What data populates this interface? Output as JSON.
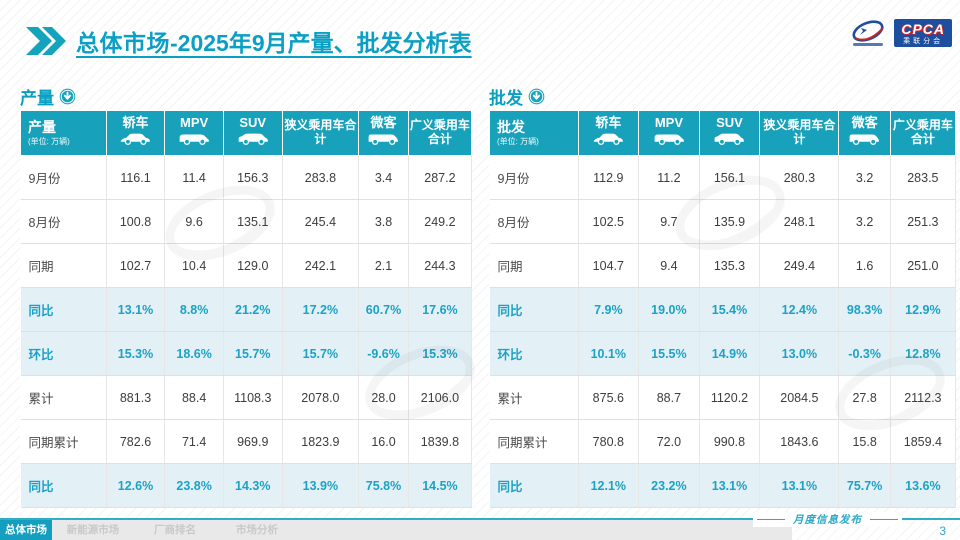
{
  "header": {
    "title_bold": "总体市场",
    "title_rest": "-2025年9月产量、批发分析表",
    "logo_text": "CPCA",
    "logo_subtext": "乘联分会"
  },
  "tables": [
    {
      "section_label": "产量",
      "header_label": "产量",
      "unit": "(单位: 万辆)",
      "columns": [
        "轿车",
        "MPV",
        "SUV",
        "狭义乘用车合计",
        "微客",
        "广义乘用车合计"
      ],
      "rows": [
        {
          "label": "9月份",
          "highlight": false,
          "values": [
            "116.1",
            "11.4",
            "156.3",
            "283.8",
            "3.4",
            "287.2"
          ]
        },
        {
          "label": "8月份",
          "highlight": false,
          "values": [
            "100.8",
            "9.6",
            "135.1",
            "245.4",
            "3.8",
            "249.2"
          ]
        },
        {
          "label": "同期",
          "highlight": false,
          "values": [
            "102.7",
            "10.4",
            "129.0",
            "242.1",
            "2.1",
            "244.3"
          ]
        },
        {
          "label": "同比",
          "highlight": true,
          "values": [
            "13.1%",
            "8.8%",
            "21.2%",
            "17.2%",
            "60.7%",
            "17.6%"
          ]
        },
        {
          "label": "环比",
          "highlight": true,
          "values": [
            "15.3%",
            "18.6%",
            "15.7%",
            "15.7%",
            "-9.6%",
            "15.3%"
          ]
        },
        {
          "label": "累计",
          "highlight": false,
          "values": [
            "881.3",
            "88.4",
            "1108.3",
            "2078.0",
            "28.0",
            "2106.0"
          ]
        },
        {
          "label": "同期累计",
          "highlight": false,
          "values": [
            "782.6",
            "71.4",
            "969.9",
            "1823.9",
            "16.0",
            "1839.8"
          ]
        },
        {
          "label": "同比",
          "highlight": true,
          "values": [
            "12.6%",
            "23.8%",
            "14.3%",
            "13.9%",
            "75.8%",
            "14.5%"
          ]
        }
      ]
    },
    {
      "section_label": "批发",
      "header_label": "批发",
      "unit": "(单位: 万辆)",
      "columns": [
        "轿车",
        "MPV",
        "SUV",
        "狭义乘用车合计",
        "微客",
        "广义乘用车合计"
      ],
      "rows": [
        {
          "label": "9月份",
          "highlight": false,
          "values": [
            "112.9",
            "11.2",
            "156.1",
            "280.3",
            "3.2",
            "283.5"
          ]
        },
        {
          "label": "8月份",
          "highlight": false,
          "values": [
            "102.5",
            "9.7",
            "135.9",
            "248.1",
            "3.2",
            "251.3"
          ]
        },
        {
          "label": "同期",
          "highlight": false,
          "values": [
            "104.7",
            "9.4",
            "135.3",
            "249.4",
            "1.6",
            "251.0"
          ]
        },
        {
          "label": "同比",
          "highlight": true,
          "values": [
            "7.9%",
            "19.0%",
            "15.4%",
            "12.4%",
            "98.3%",
            "12.9%"
          ]
        },
        {
          "label": "环比",
          "highlight": true,
          "values": [
            "10.1%",
            "15.5%",
            "14.9%",
            "13.0%",
            "-0.3%",
            "12.8%"
          ]
        },
        {
          "label": "累计",
          "highlight": false,
          "values": [
            "875.6",
            "88.7",
            "1120.2",
            "2084.5",
            "27.8",
            "2112.3"
          ]
        },
        {
          "label": "同期累计",
          "highlight": false,
          "values": [
            "780.8",
            "72.0",
            "990.8",
            "1843.6",
            "15.8",
            "1859.4"
          ]
        },
        {
          "label": "同比",
          "highlight": true,
          "values": [
            "12.1%",
            "23.2%",
            "13.1%",
            "13.1%",
            "75.7%",
            "13.6%"
          ]
        }
      ]
    }
  ],
  "footer": {
    "tabs": [
      {
        "label": "总体市场",
        "active": true
      },
      {
        "label": "新能源市场",
        "active": false
      },
      {
        "label": "厂商排名",
        "active": false
      },
      {
        "label": "市场分析",
        "active": false
      }
    ],
    "publication": "月度信息发布",
    "page_number": "3"
  },
  "colors": {
    "accent_teal": "#17a1bb",
    "title_teal": "#0a9fc4",
    "highlight_row_bg": "#e3f1f7",
    "highlight_text": "#1ba2c6",
    "logo_blue": "#1e4e9e"
  }
}
